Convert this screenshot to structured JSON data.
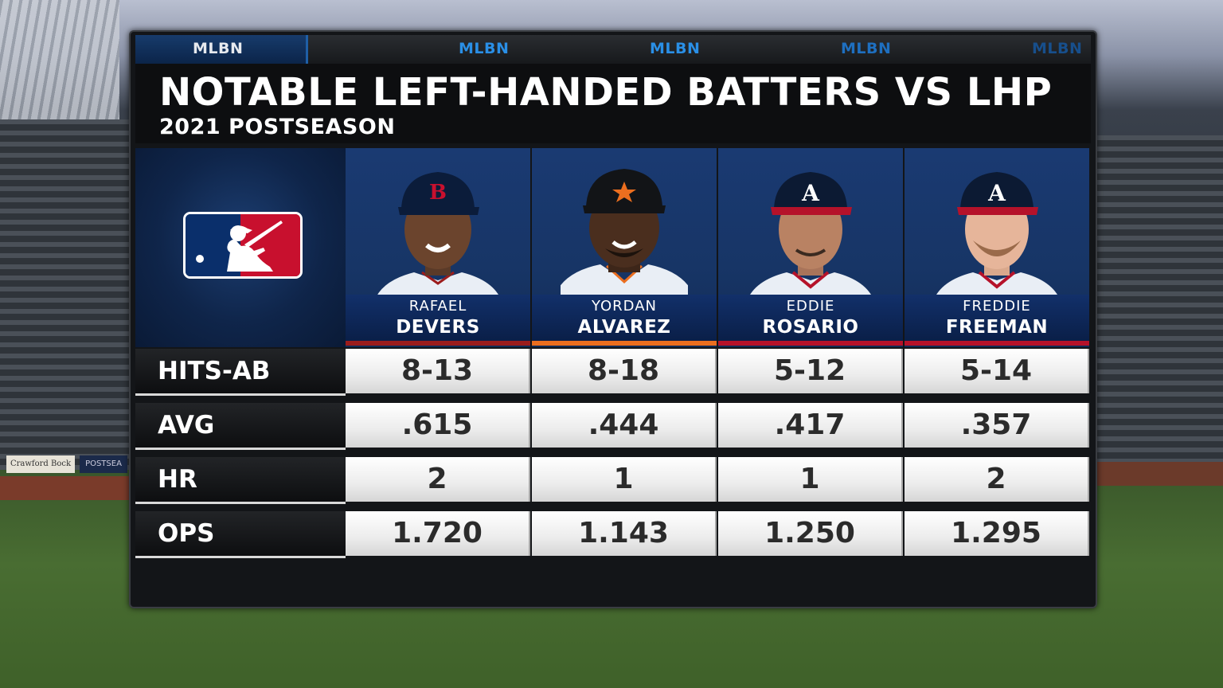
{
  "header": {
    "tabs": [
      "MLBN",
      "MLBN",
      "MLBN",
      "MLBN",
      "MLBN"
    ],
    "title": "NOTABLE LEFT-HANDED BATTERS VS LHP",
    "subtitle": "2021 POSTSEASON"
  },
  "background": {
    "sign_text": "Crawford Bock",
    "sign2_text": "POSTSEA"
  },
  "players": [
    {
      "first": "RAFAEL",
      "last": "DEVERS",
      "team_icon": "red-sox-b-icon",
      "cap_color": "#0b1c3a",
      "logo_color": "#c8102e",
      "accent": "#9b1c1c",
      "jersey": "#e9eef5"
    },
    {
      "first": "YORDAN",
      "last": "ALVAREZ",
      "team_icon": "astros-star-icon",
      "cap_color": "#121417",
      "logo_color": "#eb6e1f",
      "accent": "#eb6e1f",
      "jersey": "#e9eef5"
    },
    {
      "first": "EDDIE",
      "last": "ROSARIO",
      "team_icon": "braves-a-icon",
      "cap_color": "#0c1a33",
      "logo_color": "#ffffff",
      "accent": "#b5122a",
      "jersey": "#e9eef5"
    },
    {
      "first": "FREDDIE",
      "last": "FREEMAN",
      "team_icon": "braves-a-icon",
      "cap_color": "#0c1a33",
      "logo_color": "#ffffff",
      "accent": "#b5122a",
      "jersey": "#e9eef5"
    }
  ],
  "stats": [
    {
      "label": "HITS-AB",
      "values": [
        "8-13",
        "8-18",
        "5-12",
        "5-14"
      ]
    },
    {
      "label": "AVG",
      "values": [
        ".615",
        ".444",
        ".417",
        ".357"
      ]
    },
    {
      "label": "HR",
      "values": [
        "2",
        "1",
        "1",
        "2"
      ]
    },
    {
      "label": "OPS",
      "values": [
        "1.720",
        "1.143",
        "1.250",
        "1.295"
      ]
    }
  ]
}
